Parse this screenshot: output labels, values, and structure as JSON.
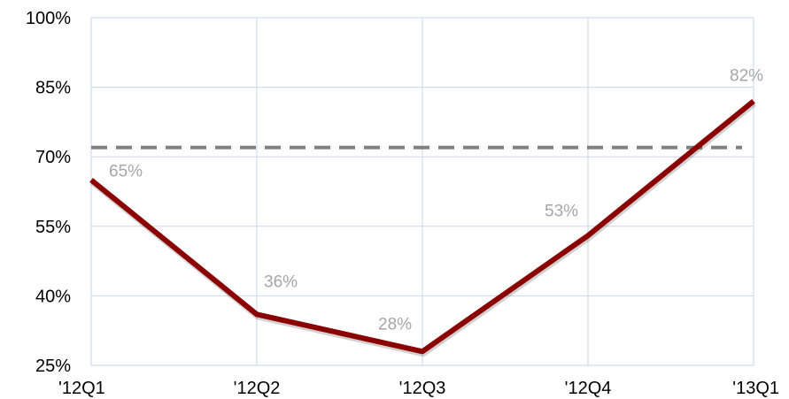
{
  "chart_data": {
    "type": "line",
    "categories": [
      "'12Q1",
      "'12Q2",
      "'12Q3",
      "'12Q4",
      "'13Q1"
    ],
    "series": [
      {
        "values": [
          65,
          36,
          28,
          53,
          82
        ],
        "labels": [
          "65%",
          "36%",
          "28%",
          "53%",
          "82%"
        ],
        "color": "#8b0000"
      }
    ],
    "reference_line": {
      "value": 72,
      "style": "dashed",
      "color": "#808080"
    },
    "ylim": [
      25,
      100
    ],
    "yticks": [
      25,
      40,
      55,
      70,
      85,
      100
    ],
    "ytick_labels": [
      "25%",
      "40%",
      "55%",
      "70%",
      "85%",
      "100%"
    ],
    "grid": true,
    "grid_color": "#c9d6ea"
  }
}
